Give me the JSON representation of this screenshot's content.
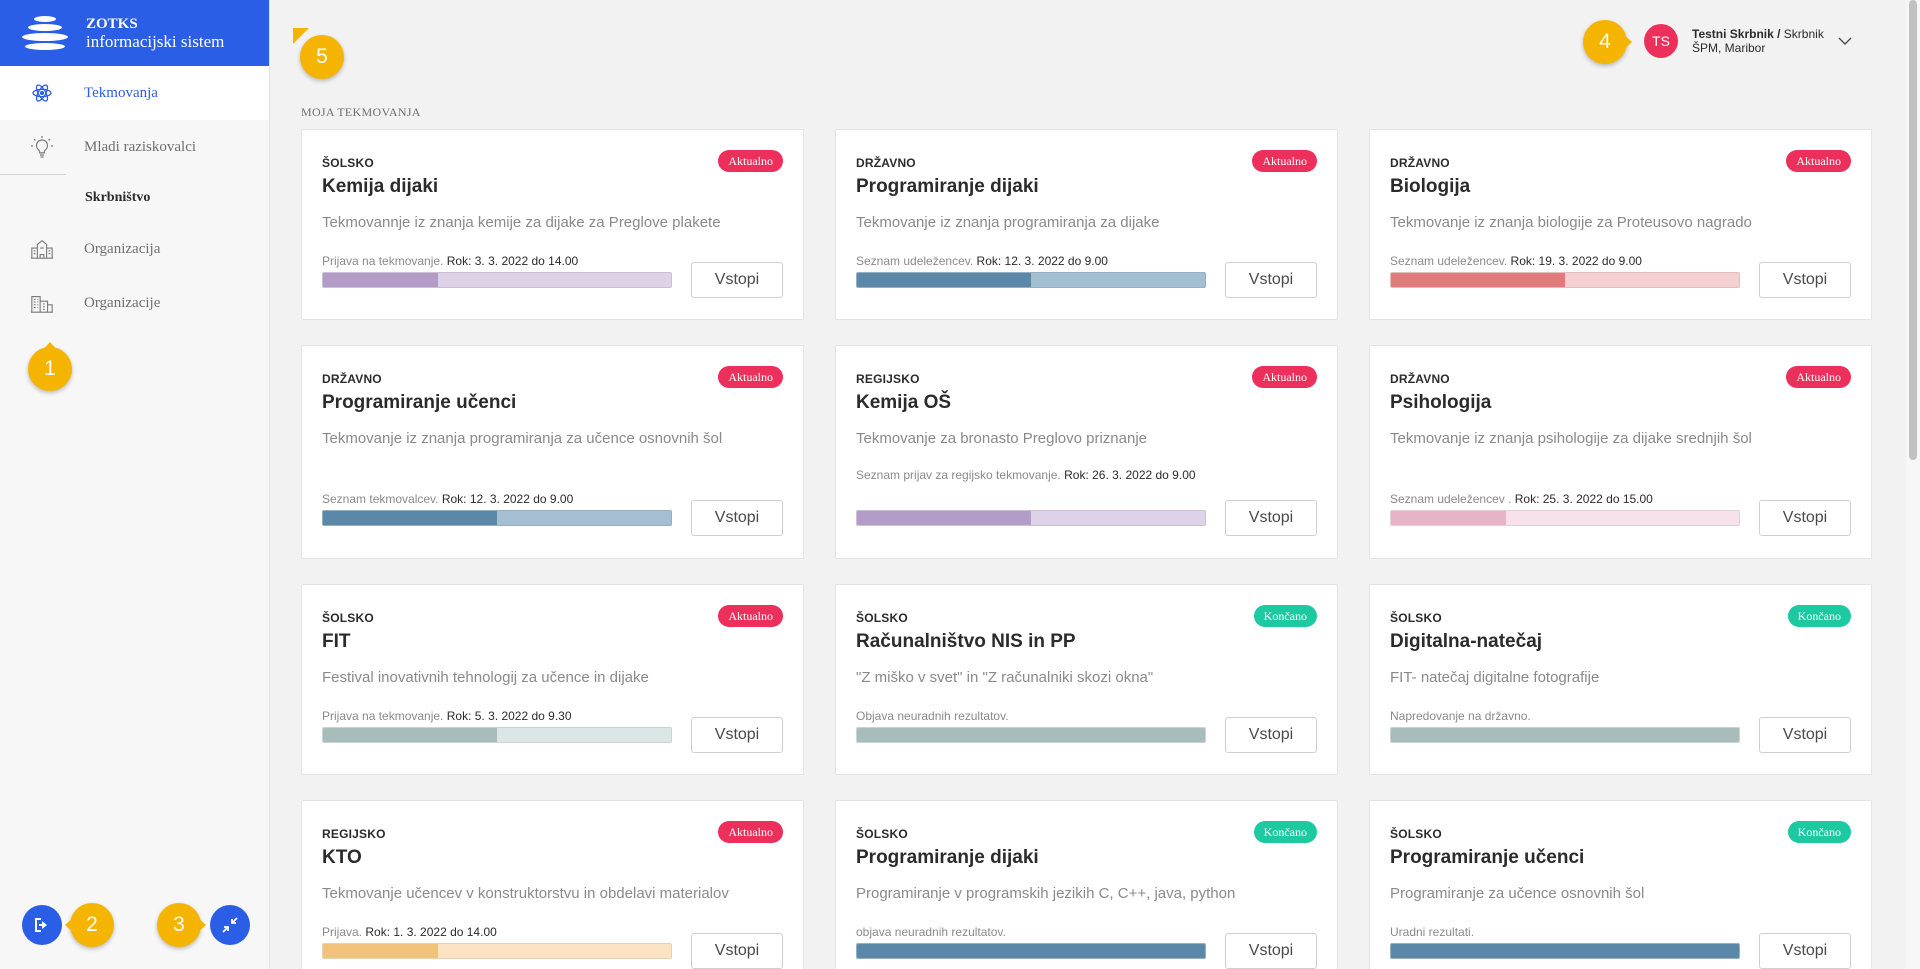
{
  "brand": {
    "title": "ZOTKS",
    "subtitle": "informacijski sistem"
  },
  "sidebar": {
    "items": [
      {
        "label": "Tekmovanja",
        "icon": "atom-icon"
      },
      {
        "label": "Mladi raziskovalci",
        "icon": "lightbulb-icon"
      }
    ],
    "section": "Skrbništvo",
    "admin_items": [
      {
        "label": "Organizacija",
        "icon": "school-building-icon"
      },
      {
        "label": "Organizacije",
        "icon": "buildings-icon"
      }
    ]
  },
  "markers": [
    "1",
    "2",
    "3",
    "4",
    "5"
  ],
  "user": {
    "initials": "TS",
    "name": "Testni Skrbnik /",
    "role": " Skrbnik",
    "organization": "ŠPM, Maribor"
  },
  "section_label": "MOJA TEKMOVANJA",
  "colors": {
    "accent": "#2b5ee6",
    "aktualno": "#ec2f5b",
    "koncano": "#1dc9a0",
    "marker": "#f5b400"
  },
  "cards": [
    {
      "level": "ŠOLSKO",
      "status_badge": "Aktualno",
      "title": "Kemija dijaki",
      "description": "Tekmovannje iz znanja kemije za dijake za Preglove plakete",
      "status_text": "Prijava na tekmovanje.",
      "deadline": "Rok: 3. 3. 2022 do 14.00",
      "progress": 0.33,
      "button": "Vstopi"
    },
    {
      "level": "DRŽAVNO",
      "status_badge": "Aktualno",
      "title": "Programiranje dijaki",
      "description": "Tekmovanje iz znanja programiranja za dijake",
      "status_text": "Seznam udeležencev.",
      "deadline": "Rok: 12. 3. 2022 do 9.00",
      "progress": 0.5,
      "button": "Vstopi"
    },
    {
      "level": "DRŽAVNO",
      "status_badge": "Aktualno",
      "title": "Biologija",
      "description": "Tekmovanje iz znanja biologije za Proteusovo nagrado",
      "status_text": "Seznam udeležencev.",
      "deadline": "Rok: 19. 3. 2022 do 9.00",
      "progress": 0.5,
      "button": "Vstopi"
    },
    {
      "level": "DRŽAVNO",
      "status_badge": "Aktualno",
      "title": "Programiranje učenci",
      "description": "Tekmovanje iz znanja programiranja za učence osnovnih šol",
      "status_text": "Seznam tekmovalcev.",
      "deadline": "Rok: 12. 3. 2022 do 9.00",
      "progress": 0.5,
      "button": "Vstopi"
    },
    {
      "level": "REGIJSKO",
      "status_badge": "Aktualno",
      "title": "Kemija OŠ",
      "description": "Tekmovanje za bronasto Preglovo priznanje",
      "status_text": "Seznam prijav za regijsko tekmovanje.",
      "deadline": "Rok: 26. 3. 2022 do 9.00",
      "progress": 0.5,
      "button": "Vstopi"
    },
    {
      "level": "DRŽAVNO",
      "status_badge": "Aktualno",
      "title": "Psihologija",
      "description": "Tekmovanje iz znanja psihologije za dijake srednjih šol",
      "status_text": "Seznam udeležencev .",
      "deadline": "Rok: 25. 3. 2022 do 15.00",
      "progress": 0.33,
      "button": "Vstopi"
    },
    {
      "level": "ŠOLSKO",
      "status_badge": "Aktualno",
      "title": "FIT",
      "description": "Festival inovativnih tehnologij za učence in dijake",
      "status_text": "Prijava na tekmovanje.",
      "deadline": "Rok: 5. 3. 2022 do 9.30",
      "progress": 0.5,
      "button": "Vstopi"
    },
    {
      "level": "ŠOLSKO",
      "status_badge": "Končano",
      "title": "Računalništvo NIS in PP",
      "description": "\"Z miško v svet\" in \"Z računalniki skozi okna\"",
      "status_text": "Objava neuradnih rezultatov.",
      "deadline": "",
      "progress": 1.0,
      "button": "Vstopi"
    },
    {
      "level": "ŠOLSKO",
      "status_badge": "Končano",
      "title": "Digitalna-natečaj",
      "description": "FIT- natečaj digitalne fotografije",
      "status_text": "Napredovanje na državno.",
      "deadline": "",
      "progress": 1.0,
      "button": "Vstopi"
    },
    {
      "level": "REGIJSKO",
      "status_badge": "Aktualno",
      "title": "KTO",
      "description": "Tekmovanje učencev v konstruktorstvu in obdelavi materialov",
      "status_text": "Prijava.",
      "deadline": "Rok: 1. 3. 2022 do 14.00",
      "progress": 0.33,
      "button": "Vstopi"
    },
    {
      "level": "ŠOLSKO",
      "status_badge": "Končano",
      "title": "Programiranje dijaki",
      "description": "Programiranje v programskih jezikih C, C++, java, python",
      "status_text": "objava neuradnih rezultatov.",
      "deadline": "",
      "progress": 1.0,
      "button": "Vstopi"
    },
    {
      "level": "ŠOLSKO",
      "status_badge": "Končano",
      "title": "Programiranje učenci",
      "description": "Programiranje za učence osnovnih šol",
      "status_text": "Uradni rezultati.",
      "deadline": "",
      "progress": 1.0,
      "button": "Vstopi"
    }
  ]
}
